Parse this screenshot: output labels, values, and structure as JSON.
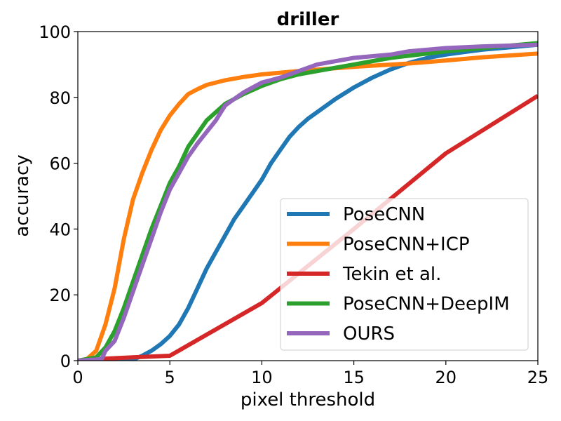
{
  "chart_data": {
    "type": "line",
    "title": "driller",
    "xlabel": "pixel threshold",
    "ylabel": "accuracy",
    "xlim": [
      0,
      25
    ],
    "ylim": [
      0,
      100
    ],
    "xticks": [
      0,
      5,
      10,
      15,
      20,
      25
    ],
    "yticks": [
      0,
      20,
      40,
      60,
      80,
      100
    ],
    "grid": false,
    "legend_position": "bottom-right",
    "series": [
      {
        "name": "PoseCNN",
        "color": "#1f77b4",
        "points": [
          [
            0,
            0
          ],
          [
            3,
            0.3
          ],
          [
            3.5,
            1.5
          ],
          [
            4,
            3
          ],
          [
            4.5,
            5
          ],
          [
            5,
            7.5
          ],
          [
            5.5,
            11
          ],
          [
            6,
            16
          ],
          [
            6.5,
            22
          ],
          [
            7,
            28
          ],
          [
            7.5,
            33
          ],
          [
            8,
            38
          ],
          [
            8.5,
            43
          ],
          [
            9,
            47
          ],
          [
            9.5,
            51
          ],
          [
            10,
            55
          ],
          [
            10.5,
            60
          ],
          [
            11,
            64
          ],
          [
            11.5,
            68
          ],
          [
            12,
            71
          ],
          [
            12.5,
            73.5
          ],
          [
            13,
            75.5
          ],
          [
            14,
            79.5
          ],
          [
            15,
            83
          ],
          [
            16,
            86
          ],
          [
            17,
            88.5
          ],
          [
            18,
            90.5
          ],
          [
            19,
            92
          ],
          [
            20,
            93
          ],
          [
            21,
            93.8
          ],
          [
            22,
            94.5
          ],
          [
            23,
            95
          ],
          [
            24,
            95.5
          ],
          [
            25,
            96
          ]
        ]
      },
      {
        "name": "PoseCNN+ICP",
        "color": "#ff7f0e",
        "points": [
          [
            0,
            0
          ],
          [
            0.5,
            0.5
          ],
          [
            1,
            3
          ],
          [
            1.5,
            11
          ],
          [
            2,
            22
          ],
          [
            2.5,
            37
          ],
          [
            3,
            49
          ],
          [
            3.5,
            57
          ],
          [
            4,
            64
          ],
          [
            4.5,
            70
          ],
          [
            5,
            74.5
          ],
          [
            5.5,
            78
          ],
          [
            6,
            81
          ],
          [
            6.5,
            82.5
          ],
          [
            7,
            83.8
          ],
          [
            8,
            85.2
          ],
          [
            9,
            86.2
          ],
          [
            10,
            87
          ],
          [
            12,
            88
          ],
          [
            15,
            89.3
          ],
          [
            18,
            90.3
          ],
          [
            20,
            91.2
          ],
          [
            22,
            92.2
          ],
          [
            25,
            93.3
          ]
        ]
      },
      {
        "name": "Tekin et al.",
        "color": "#d62728",
        "points": [
          [
            0,
            0
          ],
          [
            1,
            0.5
          ],
          [
            3,
            1
          ],
          [
            5,
            1.5
          ],
          [
            10,
            17.5
          ],
          [
            15,
            40
          ],
          [
            20,
            63
          ],
          [
            25,
            80.5
          ]
        ]
      },
      {
        "name": "PoseCNN+DeepIM",
        "color": "#2ca02c",
        "points": [
          [
            0,
            0
          ],
          [
            1,
            1
          ],
          [
            1.5,
            4
          ],
          [
            2,
            9
          ],
          [
            2.5,
            16
          ],
          [
            3,
            24
          ],
          [
            3.5,
            32
          ],
          [
            4,
            40
          ],
          [
            4.5,
            47
          ],
          [
            5,
            54
          ],
          [
            5.5,
            59
          ],
          [
            6,
            65
          ],
          [
            6.5,
            69
          ],
          [
            7,
            73
          ],
          [
            7.5,
            75.5
          ],
          [
            8,
            78
          ],
          [
            9,
            81
          ],
          [
            10,
            83.5
          ],
          [
            11,
            85.5
          ],
          [
            12,
            87
          ],
          [
            13,
            88
          ],
          [
            14,
            89
          ],
          [
            15,
            90
          ],
          [
            17,
            92
          ],
          [
            20,
            94
          ],
          [
            22,
            95
          ],
          [
            25,
            96.5
          ]
        ]
      },
      {
        "name": "OURS",
        "color": "#9467bd",
        "points": [
          [
            0,
            0
          ],
          [
            1.3,
            0.5
          ],
          [
            1.5,
            3
          ],
          [
            2,
            6
          ],
          [
            2.5,
            13
          ],
          [
            3,
            21
          ],
          [
            3.5,
            29
          ],
          [
            4,
            37
          ],
          [
            4.5,
            45
          ],
          [
            5,
            52
          ],
          [
            5.5,
            57
          ],
          [
            6,
            62
          ],
          [
            6.5,
            66
          ],
          [
            7,
            69.5
          ],
          [
            7.5,
            73
          ],
          [
            8,
            77.5
          ],
          [
            8.5,
            79.5
          ],
          [
            9,
            81.5
          ],
          [
            9.5,
            83
          ],
          [
            10,
            84.5
          ],
          [
            11,
            86
          ],
          [
            12,
            88
          ],
          [
            13,
            90
          ],
          [
            14,
            91
          ],
          [
            15,
            92
          ],
          [
            17,
            93
          ],
          [
            18,
            94
          ],
          [
            20,
            95
          ],
          [
            22,
            95.5
          ],
          [
            25,
            96
          ]
        ]
      }
    ]
  }
}
